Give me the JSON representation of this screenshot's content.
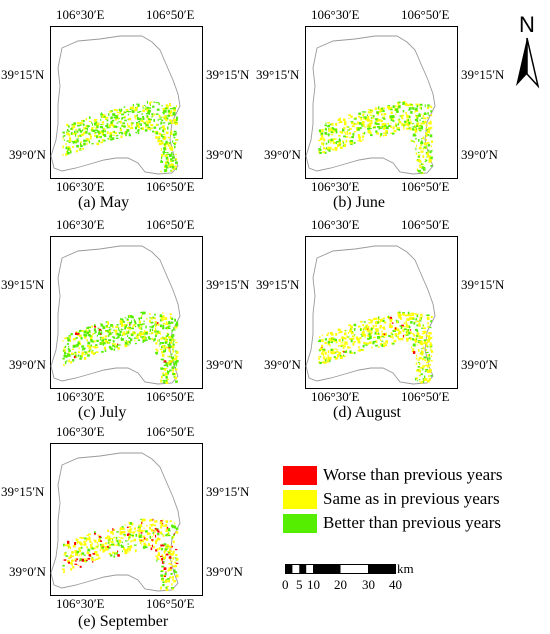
{
  "panels": [
    {
      "id": "may",
      "caption": "(a)  May"
    },
    {
      "id": "june",
      "caption": "(b)  June"
    },
    {
      "id": "july",
      "caption": "(c)  July"
    },
    {
      "id": "august",
      "caption": "(d)  August"
    },
    {
      "id": "september",
      "caption": "(e)  September"
    }
  ],
  "ticks": {
    "lon_west": "106°30′E",
    "lon_east": "106°50′E",
    "lat_north": "39°15′N",
    "lat_south": "39°0′N"
  },
  "legend": [
    {
      "label": "Worse than previous years",
      "color": "#ff0000"
    },
    {
      "label": "Same as in previous years",
      "color": "#ffff00"
    },
    {
      "label": "Better than previous years",
      "color": "#55ee00"
    }
  ],
  "scale_bar": {
    "labels": [
      "0",
      "5",
      "10",
      "20",
      "30",
      "40"
    ],
    "unit": "km"
  },
  "north_arrow": {
    "label": "N"
  },
  "colors": {
    "worse": "#ff0000",
    "same": "#ffff00",
    "better": "#55ee00",
    "outline": "#9a9a9a"
  }
}
